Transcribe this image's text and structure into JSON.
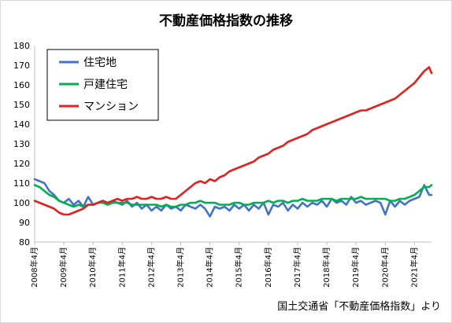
{
  "chart_data": {
    "type": "line",
    "title": "不動産価格指数の推移",
    "xlabel": "",
    "ylabel": "",
    "ylim": [
      80,
      180
    ],
    "yticks": [
      80,
      90,
      100,
      110,
      120,
      130,
      140,
      150,
      160,
      170,
      180
    ],
    "x_start": "2008-04",
    "x_end": "2021-11",
    "x_tick_labels": [
      "2008年4月",
      "2009年4月",
      "2010年4月",
      "2011年4月",
      "2012年4月",
      "2013年4月",
      "2014年4月",
      "2015年4月",
      "2016年4月",
      "2017年4月",
      "2018年4月",
      "2019年4月",
      "2020年4月",
      "2021年4月"
    ],
    "x_tick_dates": [
      "2008-04",
      "2009-04",
      "2010-04",
      "2011-04",
      "2012-04",
      "2013-04",
      "2014-04",
      "2015-04",
      "2016-04",
      "2017-04",
      "2018-04",
      "2019-04",
      "2020-04",
      "2021-04"
    ],
    "grid": false,
    "legend_position": "top-left",
    "series": [
      {
        "name": "住宅地",
        "color": "#4472c4",
        "points": [
          [
            "2008-04",
            112
          ],
          [
            "2008-06",
            111
          ],
          [
            "2008-08",
            110
          ],
          [
            "2008-10",
            106
          ],
          [
            "2008-12",
            104
          ],
          [
            "2009-02",
            101
          ],
          [
            "2009-04",
            100
          ],
          [
            "2009-06",
            102
          ],
          [
            "2009-08",
            99
          ],
          [
            "2009-10",
            101
          ],
          [
            "2009-12",
            98
          ],
          [
            "2010-02",
            103
          ],
          [
            "2010-04",
            99
          ],
          [
            "2010-06",
            100
          ],
          [
            "2010-08",
            101
          ],
          [
            "2010-10",
            99
          ],
          [
            "2010-12",
            101
          ],
          [
            "2011-02",
            100
          ],
          [
            "2011-04",
            99
          ],
          [
            "2011-06",
            101
          ],
          [
            "2011-08",
            98
          ],
          [
            "2011-10",
            100
          ],
          [
            "2011-12",
            97
          ],
          [
            "2012-02",
            99
          ],
          [
            "2012-04",
            96
          ],
          [
            "2012-06",
            98
          ],
          [
            "2012-08",
            96
          ],
          [
            "2012-10",
            99
          ],
          [
            "2012-12",
            97
          ],
          [
            "2013-02",
            98
          ],
          [
            "2013-04",
            96
          ],
          [
            "2013-06",
            99
          ],
          [
            "2013-08",
            98
          ],
          [
            "2013-10",
            97
          ],
          [
            "2013-12",
            99
          ],
          [
            "2014-02",
            97
          ],
          [
            "2014-04",
            93
          ],
          [
            "2014-06",
            98
          ],
          [
            "2014-08",
            97
          ],
          [
            "2014-10",
            98
          ],
          [
            "2014-12",
            96
          ],
          [
            "2015-02",
            99
          ],
          [
            "2015-04",
            97
          ],
          [
            "2015-06",
            99
          ],
          [
            "2015-08",
            96
          ],
          [
            "2015-10",
            99
          ],
          [
            "2015-12",
            97
          ],
          [
            "2016-02",
            100
          ],
          [
            "2016-04",
            94
          ],
          [
            "2016-06",
            99
          ],
          [
            "2016-08",
            98
          ],
          [
            "2016-10",
            100
          ],
          [
            "2016-12",
            96
          ],
          [
            "2017-02",
            99
          ],
          [
            "2017-04",
            97
          ],
          [
            "2017-06",
            100
          ],
          [
            "2017-08",
            98
          ],
          [
            "2017-10",
            100
          ],
          [
            "2017-12",
            99
          ],
          [
            "2018-02",
            101
          ],
          [
            "2018-04",
            98
          ],
          [
            "2018-06",
            102
          ],
          [
            "2018-08",
            100
          ],
          [
            "2018-10",
            101
          ],
          [
            "2018-12",
            99
          ],
          [
            "2019-02",
            103
          ],
          [
            "2019-04",
            100
          ],
          [
            "2019-06",
            101
          ],
          [
            "2019-08",
            99
          ],
          [
            "2019-10",
            100
          ],
          [
            "2019-12",
            101
          ],
          [
            "2020-02",
            100
          ],
          [
            "2020-04",
            94
          ],
          [
            "2020-06",
            101
          ],
          [
            "2020-08",
            98
          ],
          [
            "2020-10",
            101
          ],
          [
            "2020-12",
            99
          ],
          [
            "2021-02",
            101
          ],
          [
            "2021-04",
            102
          ],
          [
            "2021-06",
            103
          ],
          [
            "2021-08",
            109
          ],
          [
            "2021-10",
            104
          ],
          [
            "2021-11",
            104
          ]
        ]
      },
      {
        "name": "戸建住宅",
        "color": "#00b050",
        "points": [
          [
            "2008-04",
            109
          ],
          [
            "2008-06",
            108
          ],
          [
            "2008-08",
            106
          ],
          [
            "2008-10",
            104
          ],
          [
            "2008-12",
            103
          ],
          [
            "2009-02",
            101
          ],
          [
            "2009-04",
            100
          ],
          [
            "2009-06",
            99
          ],
          [
            "2009-08",
            98
          ],
          [
            "2009-10",
            99
          ],
          [
            "2009-12",
            98
          ],
          [
            "2010-02",
            99
          ],
          [
            "2010-04",
            99
          ],
          [
            "2010-06",
            100
          ],
          [
            "2010-08",
            100
          ],
          [
            "2010-10",
            99
          ],
          [
            "2010-12",
            100
          ],
          [
            "2011-02",
            100
          ],
          [
            "2011-04",
            100
          ],
          [
            "2011-06",
            100
          ],
          [
            "2011-08",
            99
          ],
          [
            "2011-10",
            99
          ],
          [
            "2011-12",
            99
          ],
          [
            "2012-02",
            99
          ],
          [
            "2012-04",
            99
          ],
          [
            "2012-06",
            99
          ],
          [
            "2012-08",
            98
          ],
          [
            "2012-10",
            99
          ],
          [
            "2012-12",
            98
          ],
          [
            "2013-02",
            98
          ],
          [
            "2013-04",
            99
          ],
          [
            "2013-06",
            99
          ],
          [
            "2013-08",
            100
          ],
          [
            "2013-10",
            100
          ],
          [
            "2013-12",
            101
          ],
          [
            "2014-02",
            100
          ],
          [
            "2014-04",
            100
          ],
          [
            "2014-06",
            100
          ],
          [
            "2014-08",
            99
          ],
          [
            "2014-10",
            99
          ],
          [
            "2014-12",
            99
          ],
          [
            "2015-02",
            100
          ],
          [
            "2015-04",
            100
          ],
          [
            "2015-06",
            99
          ],
          [
            "2015-08",
            99
          ],
          [
            "2015-10",
            100
          ],
          [
            "2015-12",
            100
          ],
          [
            "2016-02",
            100
          ],
          [
            "2016-04",
            101
          ],
          [
            "2016-06",
            100
          ],
          [
            "2016-08",
            101
          ],
          [
            "2016-10",
            101
          ],
          [
            "2016-12",
            100
          ],
          [
            "2017-02",
            101
          ],
          [
            "2017-04",
            101
          ],
          [
            "2017-06",
            102
          ],
          [
            "2017-08",
            101
          ],
          [
            "2017-10",
            101
          ],
          [
            "2017-12",
            101
          ],
          [
            "2018-02",
            102
          ],
          [
            "2018-04",
            102
          ],
          [
            "2018-06",
            102
          ],
          [
            "2018-08",
            101
          ],
          [
            "2018-10",
            102
          ],
          [
            "2018-12",
            102
          ],
          [
            "2019-02",
            102
          ],
          [
            "2019-04",
            102
          ],
          [
            "2019-06",
            103
          ],
          [
            "2019-08",
            102
          ],
          [
            "2019-10",
            102
          ],
          [
            "2019-12",
            102
          ],
          [
            "2020-02",
            102
          ],
          [
            "2020-04",
            102
          ],
          [
            "2020-06",
            101
          ],
          [
            "2020-08",
            101
          ],
          [
            "2020-10",
            102
          ],
          [
            "2020-12",
            102
          ],
          [
            "2021-02",
            103
          ],
          [
            "2021-04",
            104
          ],
          [
            "2021-06",
            106
          ],
          [
            "2021-08",
            108
          ],
          [
            "2021-10",
            108
          ],
          [
            "2021-11",
            109
          ]
        ]
      },
      {
        "name": "マンション",
        "color": "#e32020",
        "points": [
          [
            "2008-04",
            101
          ],
          [
            "2008-06",
            100
          ],
          [
            "2008-08",
            99
          ],
          [
            "2008-10",
            98
          ],
          [
            "2008-12",
            97
          ],
          [
            "2009-02",
            95
          ],
          [
            "2009-04",
            94
          ],
          [
            "2009-06",
            94
          ],
          [
            "2009-08",
            95
          ],
          [
            "2009-10",
            96
          ],
          [
            "2009-12",
            97
          ],
          [
            "2010-02",
            99
          ],
          [
            "2010-04",
            99
          ],
          [
            "2010-06",
            100
          ],
          [
            "2010-08",
            101
          ],
          [
            "2010-10",
            100
          ],
          [
            "2010-12",
            101
          ],
          [
            "2011-02",
            102
          ],
          [
            "2011-04",
            101
          ],
          [
            "2011-06",
            102
          ],
          [
            "2011-08",
            102
          ],
          [
            "2011-10",
            103
          ],
          [
            "2011-12",
            102
          ],
          [
            "2012-02",
            102
          ],
          [
            "2012-04",
            103
          ],
          [
            "2012-06",
            102
          ],
          [
            "2012-08",
            102
          ],
          [
            "2012-10",
            103
          ],
          [
            "2012-12",
            102
          ],
          [
            "2013-02",
            102
          ],
          [
            "2013-04",
            104
          ],
          [
            "2013-06",
            106
          ],
          [
            "2013-08",
            108
          ],
          [
            "2013-10",
            110
          ],
          [
            "2013-12",
            111
          ],
          [
            "2014-02",
            110
          ],
          [
            "2014-04",
            112
          ],
          [
            "2014-06",
            111
          ],
          [
            "2014-08",
            113
          ],
          [
            "2014-10",
            114
          ],
          [
            "2014-12",
            116
          ],
          [
            "2015-02",
            117
          ],
          [
            "2015-04",
            118
          ],
          [
            "2015-06",
            119
          ],
          [
            "2015-08",
            120
          ],
          [
            "2015-10",
            121
          ],
          [
            "2015-12",
            123
          ],
          [
            "2016-02",
            124
          ],
          [
            "2016-04",
            125
          ],
          [
            "2016-06",
            127
          ],
          [
            "2016-08",
            128
          ],
          [
            "2016-10",
            129
          ],
          [
            "2016-12",
            131
          ],
          [
            "2017-02",
            132
          ],
          [
            "2017-04",
            133
          ],
          [
            "2017-06",
            134
          ],
          [
            "2017-08",
            135
          ],
          [
            "2017-10",
            137
          ],
          [
            "2017-12",
            138
          ],
          [
            "2018-02",
            139
          ],
          [
            "2018-04",
            140
          ],
          [
            "2018-06",
            141
          ],
          [
            "2018-08",
            142
          ],
          [
            "2018-10",
            143
          ],
          [
            "2018-12",
            144
          ],
          [
            "2019-02",
            145
          ],
          [
            "2019-04",
            146
          ],
          [
            "2019-06",
            147
          ],
          [
            "2019-08",
            147
          ],
          [
            "2019-10",
            148
          ],
          [
            "2019-12",
            149
          ],
          [
            "2020-02",
            150
          ],
          [
            "2020-04",
            151
          ],
          [
            "2020-06",
            152
          ],
          [
            "2020-08",
            153
          ],
          [
            "2020-10",
            155
          ],
          [
            "2020-12",
            157
          ],
          [
            "2021-02",
            159
          ],
          [
            "2021-04",
            161
          ],
          [
            "2021-06",
            164
          ],
          [
            "2021-08",
            167
          ],
          [
            "2021-10",
            169
          ],
          [
            "2021-11",
            166
          ]
        ]
      }
    ]
  },
  "footer": {
    "source": "国土交通省「不動産価格指数」より"
  }
}
